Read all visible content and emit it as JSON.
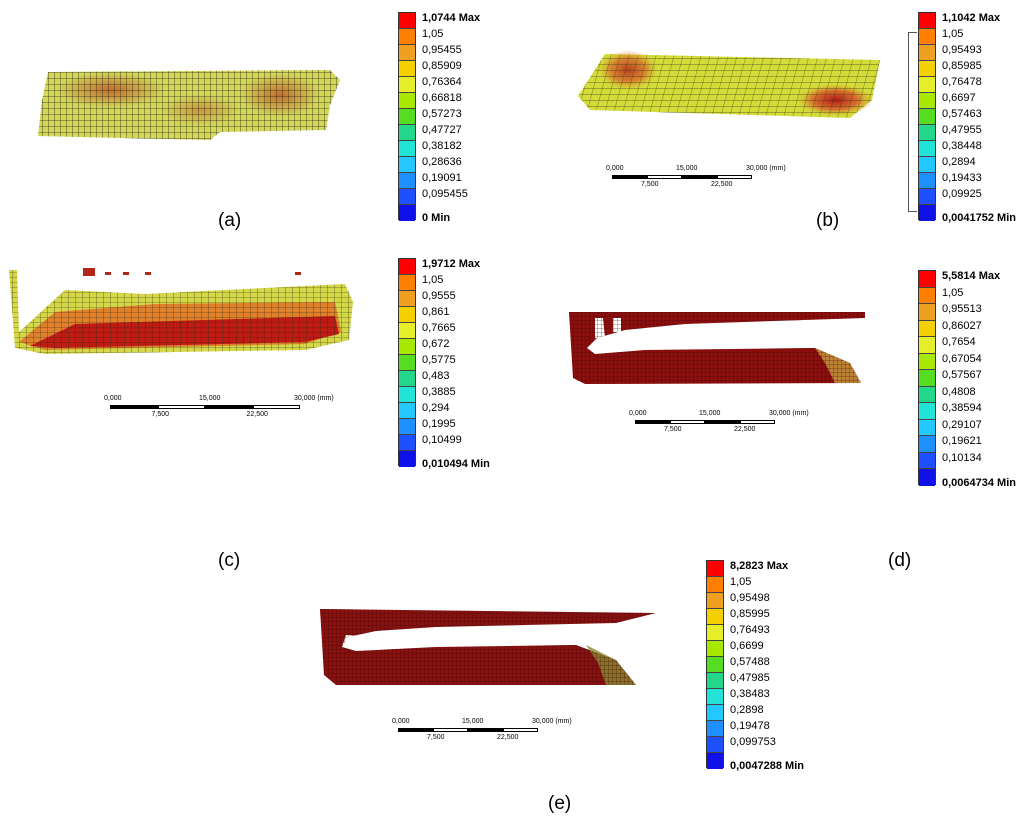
{
  "panels": [
    {
      "id": "a",
      "caption": "(a)",
      "legend": [
        "1,0744 Max",
        "1,05",
        "0,95455",
        "0,85909",
        "0,76364",
        "0,66818",
        "0,57273",
        "0,47727",
        "0,38182",
        "0,28636",
        "0,19091",
        "0,095455",
        "0 Min"
      ],
      "scalebar": null
    },
    {
      "id": "b",
      "caption": "(b)",
      "legend": [
        "1,1042 Max",
        "1,05",
        "0,95493",
        "0,85985",
        "0,76478",
        "0,6697",
        "0,57463",
        "0,47955",
        "0,38448",
        "0,2894",
        "0,19433",
        "0,09925",
        "0,0041752 Min"
      ],
      "scalebar": {
        "top": [
          "0,000",
          "15,000",
          "30,000 (mm)"
        ],
        "bottom": [
          "7,500",
          "22,500"
        ]
      }
    },
    {
      "id": "c",
      "caption": "(c)",
      "legend": [
        "1,9712 Max",
        "1,05",
        "0,9555",
        "0,861",
        "0,7665",
        "0,672",
        "0,5775",
        "0,483",
        "0,3885",
        "0,294",
        "0,1995",
        "0,10499",
        "0,010494 Min"
      ],
      "scalebar": {
        "top": [
          "0,000",
          "15,000",
          "30,000 (mm)"
        ],
        "bottom": [
          "7,500",
          "22,500"
        ]
      }
    },
    {
      "id": "d",
      "caption": "(d)",
      "legend": [
        "5,5814 Max",
        "1,05",
        "0,95513",
        "0,86027",
        "0,7654",
        "0,67054",
        "0,57567",
        "0,4808",
        "0,38594",
        "0,29107",
        "0,19621",
        "0,10134",
        "0,0064734 Min"
      ],
      "scalebar": {
        "top": [
          "0,000",
          "15,000",
          "30,000 (mm)"
        ],
        "bottom": [
          "7,500",
          "22,500"
        ]
      }
    },
    {
      "id": "e",
      "caption": "(e)",
      "legend": [
        "8,2823 Max",
        "1,05",
        "0,95498",
        "0,85995",
        "0,76493",
        "0,6699",
        "0,57488",
        "0,47985",
        "0,38483",
        "0,2898",
        "0,19478",
        "0,099753",
        "0,0047288 Min"
      ],
      "scalebar": {
        "top": [
          "0,000",
          "15,000",
          "30,000 (mm)"
        ],
        "bottom": [
          "7,500",
          "22,500"
        ]
      }
    }
  ],
  "colors": {
    "scale": [
      "#ff0000",
      "#ff7f00",
      "#f0a020",
      "#f4d000",
      "#e6ee2a",
      "#a8e800",
      "#55dd22",
      "#22d68a",
      "#22e3d8",
      "#22c8ff",
      "#1e90ff",
      "#1e50ff",
      "#1010e8"
    ],
    "mesh_low": "#d6df52",
    "mesh_mid": "#d98a2c",
    "mesh_high": "#b0261a",
    "mesh_dark": "#7a0c0c"
  }
}
